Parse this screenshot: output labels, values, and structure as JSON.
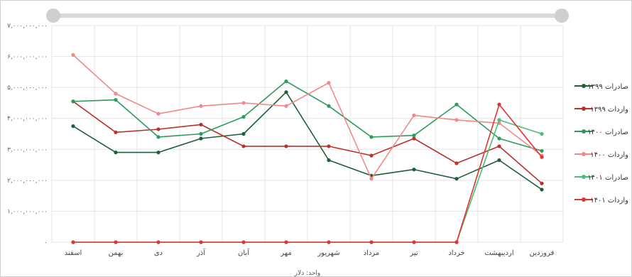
{
  "scrollbar": {},
  "chart_data": {
    "type": "line",
    "title": "",
    "xlabel": "واحد: دلار",
    "ylabel": "",
    "ylim": [
      0,
      7000000000
    ],
    "yticks": [
      "۷,۰۰۰,۰۰۰,۰۰۰",
      "۶,۰۰۰,۰۰۰,۰۰۰",
      "۵,۰۰۰,۰۰۰,۰۰۰",
      "۴,۰۰۰,۰۰۰,۰۰۰",
      "۳,۰۰۰,۰۰۰,۰۰۰",
      "۲,۰۰۰,۰۰۰,۰۰۰",
      "۱,۰۰۰,۰۰۰,۰۰۰",
      "۰"
    ],
    "grid": true,
    "legend_position": "right",
    "categories": [
      "فروردین",
      "اردیبهشت",
      "خرداد",
      "تیر",
      "مرداد",
      "شهریور",
      "مهر",
      "آبان",
      "آذر",
      "دی",
      "بهمن",
      "اسفند"
    ],
    "series": [
      {
        "name": "صادرات ۱۳۹۹",
        "color": "#1f5e3a",
        "values": [
          1700000000,
          2650000000,
          2050000000,
          2350000000,
          2150000000,
          2650000000,
          4850000000,
          3500000000,
          3350000000,
          2900000000,
          2900000000,
          3750000000
        ]
      },
      {
        "name": "واردات ۱۳۹۹",
        "color": "#b8322e",
        "values": [
          1900000000,
          3100000000,
          2550000000,
          3350000000,
          2800000000,
          3100000000,
          3100000000,
          3100000000,
          3800000000,
          3650000000,
          3550000000,
          4550000000
        ]
      },
      {
        "name": "صادرات ۱۴۰۰",
        "color": "#2e9a5e",
        "values": [
          2950000000,
          3350000000,
          4450000000,
          3450000000,
          3400000000,
          4400000000,
          5200000000,
          4050000000,
          3500000000,
          3400000000,
          4600000000,
          4550000000
        ]
      },
      {
        "name": "واردات ۱۴۰۰",
        "color": "#ef8a88",
        "values": [
          2800000000,
          3850000000,
          3950000000,
          4100000000,
          2050000000,
          5150000000,
          4400000000,
          4500000000,
          4400000000,
          4150000000,
          4800000000,
          6050000000
        ]
      },
      {
        "name": "صادرات ۱۴۰۱",
        "color": "#4bbf73",
        "values": [
          3500000000,
          3950000000,
          0,
          0,
          0,
          0,
          0,
          0,
          0,
          0,
          0,
          0
        ]
      },
      {
        "name": "واردات ۱۴۰۱",
        "color": "#e0352f",
        "values": [
          2750000000,
          4450000000,
          0,
          0,
          0,
          0,
          0,
          0,
          0,
          0,
          0,
          0
        ]
      }
    ]
  }
}
